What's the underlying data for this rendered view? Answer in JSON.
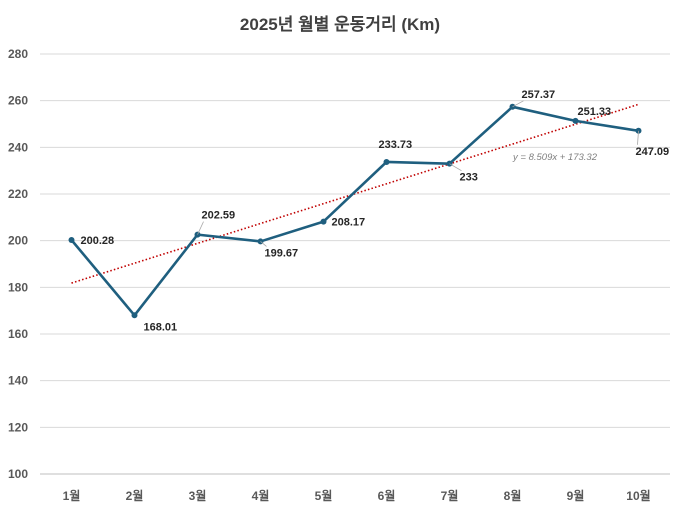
{
  "chart_data": {
    "type": "line",
    "title": "2025년 월별 운동거리 (Km)",
    "categories": [
      "1월",
      "2월",
      "3월",
      "4월",
      "5월",
      "6월",
      "7월",
      "8월",
      "9월",
      "10월"
    ],
    "series": [
      {
        "name": "운동거리",
        "values": [
          200.28,
          168.01,
          202.59,
          199.67,
          208.17,
          233.73,
          233,
          257.37,
          251.33,
          247.09
        ]
      }
    ],
    "data_labels": [
      "200.28",
      "168.01",
      "202.59",
      "199.67",
      "208.17",
      "233.73",
      "233",
      "257.37",
      "251.33",
      "247.09"
    ],
    "ylim": [
      100,
      280
    ],
    "yticks": [
      100,
      120,
      140,
      160,
      180,
      200,
      220,
      240,
      260,
      280
    ],
    "grid": true,
    "trendline": {
      "type": "linear",
      "slope": 8.509,
      "intercept": 173.32,
      "equation": "y = 8.509x + 173.32"
    },
    "colors": {
      "line": "#1f5f7f",
      "trend": "#c00000",
      "grid": "#d9d9d9",
      "axis": "#bfbfbf"
    },
    "xlabel": "",
    "ylabel": ""
  }
}
